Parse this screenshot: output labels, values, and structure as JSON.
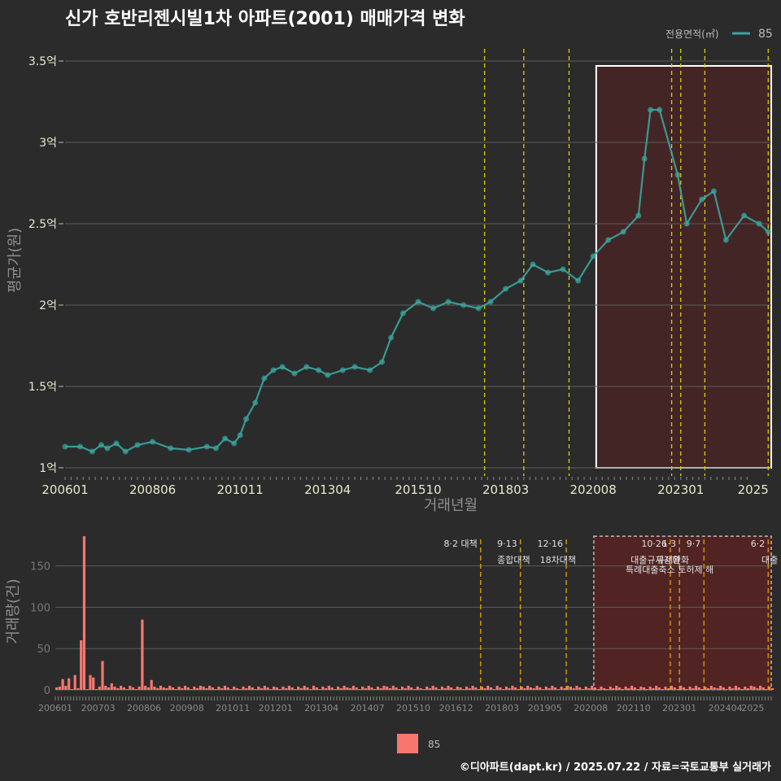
{
  "chart_data": [
    {
      "type": "line",
      "title": "신가 호반리젠시빌1차 아파트(2001) 매매가격 변화",
      "xlabel": "거래년월",
      "ylabel": "평균가(원)",
      "x_ticks": [
        "200601",
        "200806",
        "201011",
        "201304",
        "201510",
        "201803",
        "202008",
        "202301",
        "2025"
      ],
      "y_ticks": [
        {
          "value": 1.0,
          "label": "1억"
        },
        {
          "value": 1.5,
          "label": "1.5억"
        },
        {
          "value": 2.0,
          "label": "2억"
        },
        {
          "value": 2.5,
          "label": "2.5억"
        },
        {
          "value": 3.0,
          "label": "3억"
        },
        {
          "value": 3.5,
          "label": "3.5억"
        }
      ],
      "ylim": [
        0.95,
        3.6
      ],
      "xlim": [
        "2006-01",
        "2025-07"
      ],
      "legend_title": "전용면적(㎡)",
      "legend_position": "top-right",
      "series": [
        {
          "name": "85",
          "color": "#3aa6a0",
          "points": [
            [
              "2006-01",
              1.13
            ],
            [
              "2006-06",
              1.13
            ],
            [
              "2006-10",
              1.1
            ],
            [
              "2007-01",
              1.14
            ],
            [
              "2007-03",
              1.12
            ],
            [
              "2007-06",
              1.15
            ],
            [
              "2007-09",
              1.1
            ],
            [
              "2008-01",
              1.14
            ],
            [
              "2008-06",
              1.16
            ],
            [
              "2008-12",
              1.12
            ],
            [
              "2009-06",
              1.11
            ],
            [
              "2009-12",
              1.13
            ],
            [
              "2010-03",
              1.12
            ],
            [
              "2010-06",
              1.18
            ],
            [
              "2010-09",
              1.15
            ],
            [
              "2010-11",
              1.2
            ],
            [
              "2011-01",
              1.3
            ],
            [
              "2011-04",
              1.4
            ],
            [
              "2011-07",
              1.55
            ],
            [
              "2011-10",
              1.6
            ],
            [
              "2012-01",
              1.62
            ],
            [
              "2012-05",
              1.58
            ],
            [
              "2012-09",
              1.62
            ],
            [
              "2013-01",
              1.6
            ],
            [
              "2013-04",
              1.57
            ],
            [
              "2013-09",
              1.6
            ],
            [
              "2014-01",
              1.62
            ],
            [
              "2014-06",
              1.6
            ],
            [
              "2014-10",
              1.65
            ],
            [
              "2015-01",
              1.8
            ],
            [
              "2015-05",
              1.95
            ],
            [
              "2015-10",
              2.02
            ],
            [
              "2016-03",
              1.98
            ],
            [
              "2016-08",
              2.02
            ],
            [
              "2017-01",
              2.0
            ],
            [
              "2017-06",
              1.98
            ],
            [
              "2017-10",
              2.02
            ],
            [
              "2018-03",
              2.1
            ],
            [
              "2018-08",
              2.15
            ],
            [
              "2018-12",
              2.25
            ],
            [
              "2019-05",
              2.2
            ],
            [
              "2019-10",
              2.22
            ],
            [
              "2020-03",
              2.15
            ],
            [
              "2020-08",
              2.3
            ],
            [
              "2021-01",
              2.4
            ],
            [
              "2021-06",
              2.45
            ],
            [
              "2021-11",
              2.55
            ],
            [
              "2022-01",
              2.9
            ],
            [
              "2022-03",
              3.2
            ],
            [
              "2022-06",
              3.2
            ],
            [
              "2022-12",
              2.8
            ],
            [
              "2023-03",
              2.5
            ],
            [
              "2023-08",
              2.65
            ],
            [
              "2023-12",
              2.7
            ],
            [
              "2024-04",
              2.4
            ],
            [
              "2024-10",
              2.55
            ],
            [
              "2025-03",
              2.5
            ],
            [
              "2025-06",
              2.45
            ]
          ]
        }
      ],
      "policy_lines": [
        "2017-08",
        "2018-09",
        "2019-12",
        "2022-10",
        "2023-01",
        "2023-09",
        "2025-06"
      ],
      "highlight_range": [
        "2020-09",
        "2025-07"
      ]
    },
    {
      "type": "bar",
      "ylabel": "거래량(건)",
      "y_ticks": [
        0,
        50,
        100,
        150
      ],
      "ylim": [
        0,
        190
      ],
      "x_ticks": [
        "200601",
        "200703",
        "200806",
        "200908",
        "201011",
        "201201",
        "201304",
        "201407",
        "201510",
        "201612",
        "201803",
        "201905",
        "202008",
        "202110",
        "202301",
        "202404",
        "2025"
      ],
      "series": [
        {
          "name": "85",
          "color": "#f8766d",
          "spikes": [
            [
              "2006-01",
              3
            ],
            [
              "2006-03",
              13
            ],
            [
              "2006-05",
              14
            ],
            [
              "2006-07",
              18
            ],
            [
              "2006-09",
              60
            ],
            [
              "2006-10",
              186
            ],
            [
              "2006-12",
              18
            ],
            [
              "2007-01",
              15
            ],
            [
              "2007-04",
              35
            ],
            [
              "2007-07",
              8
            ],
            [
              "2008-05",
              85
            ],
            [
              "2008-08",
              12
            ]
          ],
          "baseline": 3
        }
      ],
      "annotations": [
        {
          "date": "2017-08",
          "label1": "8·2 대책",
          "label2": ""
        },
        {
          "date": "2018-09",
          "label1": "9·13",
          "label2": "종합대책"
        },
        {
          "date": "2019-12",
          "label1": "12·16",
          "label2": "18차대책"
        },
        {
          "date": "2022-10",
          "label1": "10·26",
          "label2": "대출규제강화"
        },
        {
          "date": "2023-01",
          "label1": "1·3",
          "label2": "규제완화"
        },
        {
          "date": "2023-09",
          "label1": "9·7",
          "label2": "특례대출축소 토허제 해"
        },
        {
          "date": "2025-06",
          "label1": "6·2",
          "label2": "대출"
        }
      ],
      "legend": [
        {
          "name": "85",
          "color": "#f8766d"
        }
      ]
    }
  ],
  "credit": "©디아파트(dapt.kr) / 2025.07.22 / 자료=국토교통부 실거래가"
}
